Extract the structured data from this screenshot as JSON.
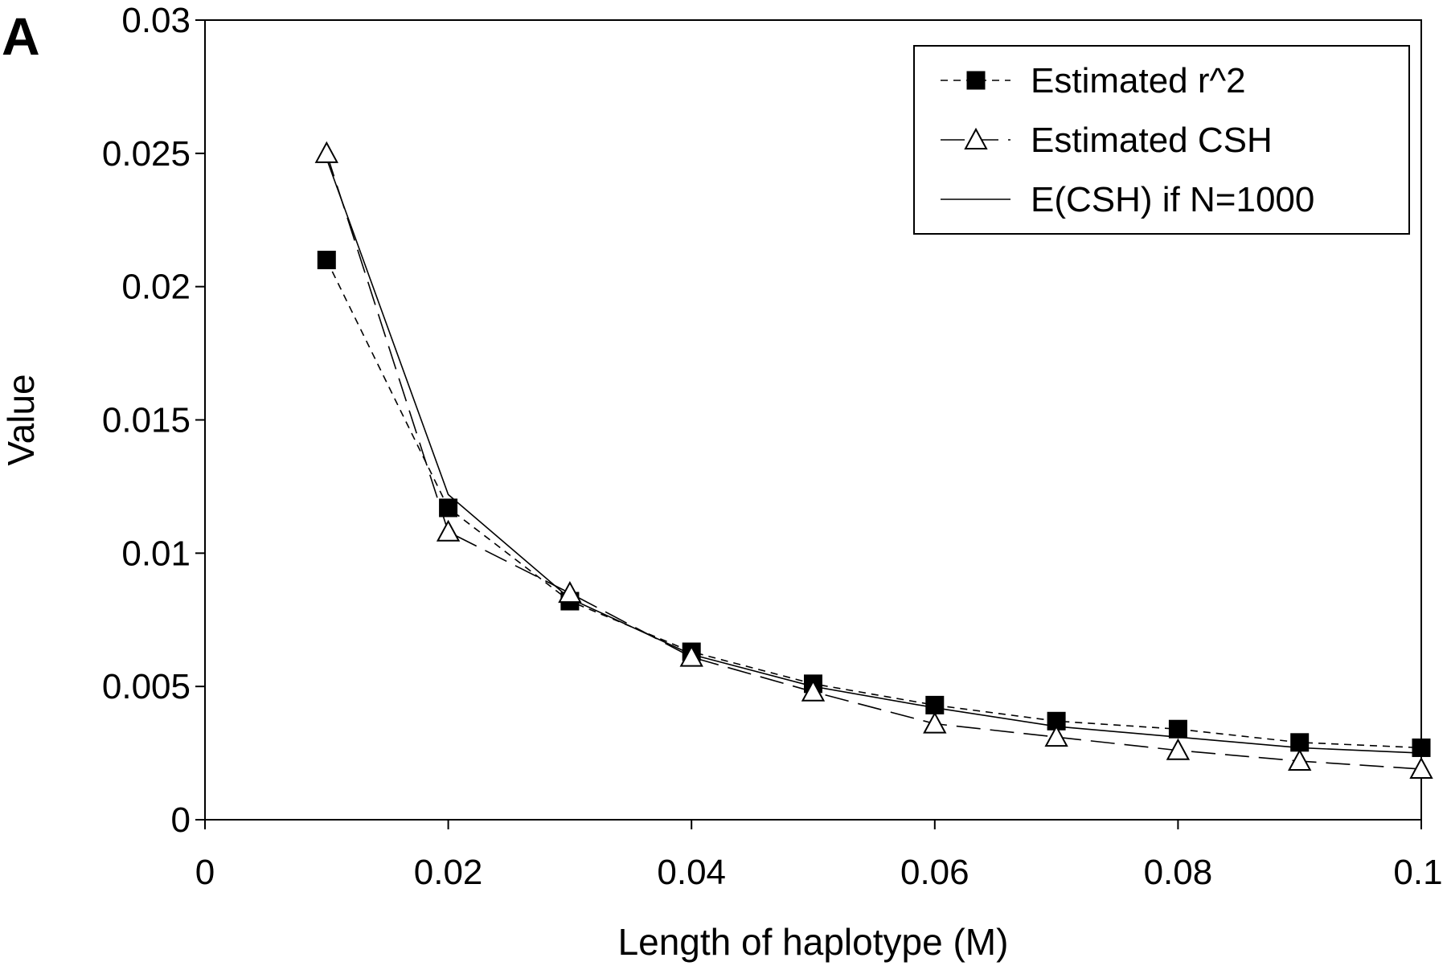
{
  "panel_label": "A",
  "chart_data": {
    "type": "line",
    "xlabel": "Length of haplotype (M)",
    "ylabel": "Value",
    "xlim": [
      0,
      0.1
    ],
    "ylim": [
      0,
      0.03
    ],
    "x_ticks": [
      0,
      0.02,
      0.04,
      0.06,
      0.08,
      0.1
    ],
    "x_tick_labels": [
      "0",
      "0.02",
      "0.04",
      "0.06",
      "0.08",
      "0.1"
    ],
    "y_ticks": [
      0,
      0.005,
      0.01,
      0.015,
      0.02,
      0.025,
      0.03
    ],
    "y_tick_labels": [
      "0",
      "0.005",
      "0.01",
      "0.015",
      "0.02",
      "0.025",
      "0.03"
    ],
    "grid": false,
    "legend_position": "top-right",
    "x": [
      0.01,
      0.02,
      0.03,
      0.04,
      0.05,
      0.06,
      0.07,
      0.08,
      0.09,
      0.1
    ],
    "series": [
      {
        "name": "Estimated r^2",
        "marker": "filled-square",
        "line": "short-dash",
        "color": "#000000",
        "values": [
          0.021,
          0.0117,
          0.0082,
          0.0063,
          0.0051,
          0.0043,
          0.0037,
          0.0034,
          0.0029,
          0.0027
        ]
      },
      {
        "name": "Estimated CSH",
        "marker": "open-triangle",
        "line": "long-dash",
        "color": "#000000",
        "values": [
          0.025,
          0.0108,
          0.0085,
          0.0061,
          0.0048,
          0.0036,
          0.0031,
          0.0026,
          0.0022,
          0.0019
        ]
      },
      {
        "name": "E(CSH) if N=1000",
        "marker": "none",
        "line": "solid",
        "color": "#000000",
        "values": [
          0.0248,
          0.0122,
          0.0083,
          0.0062,
          0.005,
          0.0042,
          0.0035,
          0.0031,
          0.0027,
          0.0025
        ]
      }
    ]
  }
}
